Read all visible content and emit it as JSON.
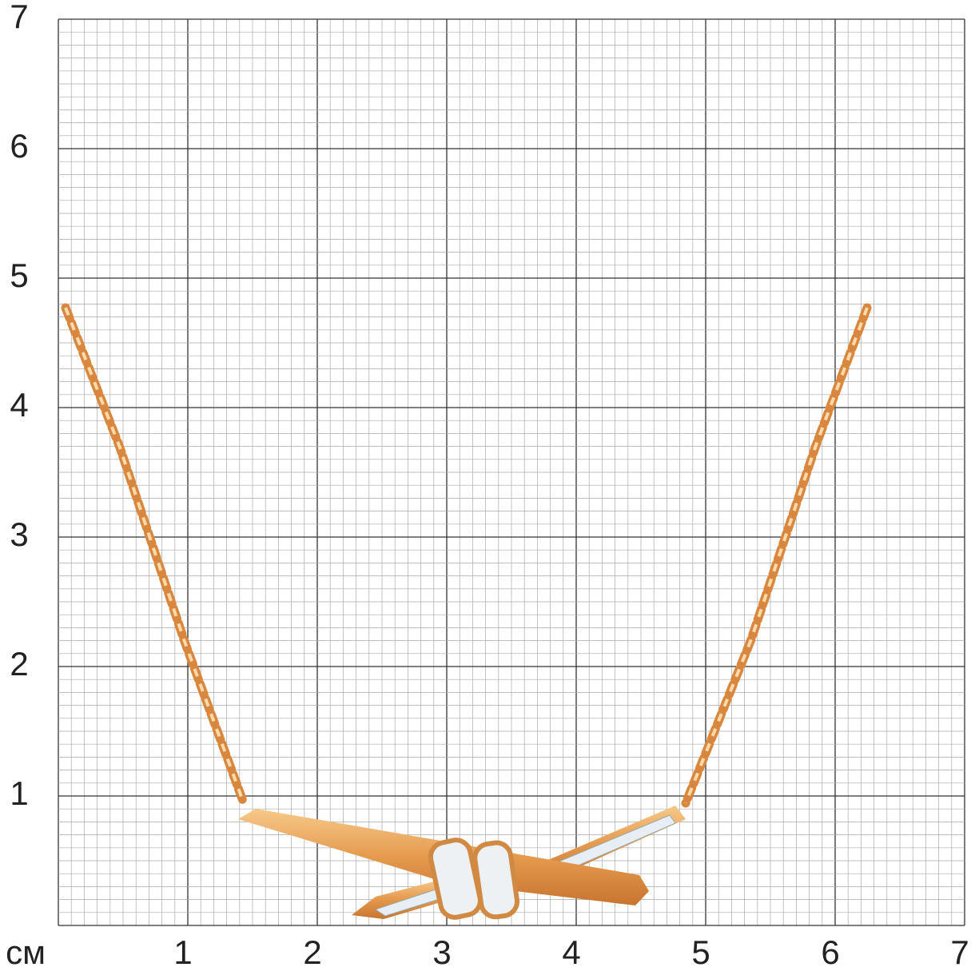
{
  "unit": "см",
  "x_labels": [
    1,
    2,
    3,
    4,
    5,
    6,
    7
  ],
  "y_labels": [
    1,
    2,
    3,
    4,
    5,
    6,
    7
  ]
}
